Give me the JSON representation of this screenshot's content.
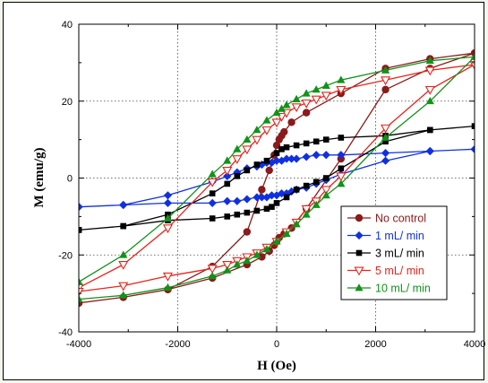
{
  "chart_data": {
    "type": "line",
    "xlabel": "H (Oe)",
    "ylabel": "M (emu/g)",
    "xlim": [
      -4000,
      4000
    ],
    "ylim": [
      -40,
      40
    ],
    "xticks": [
      -4000,
      -2000,
      0,
      2000,
      4000
    ],
    "yticks": [
      -40,
      -20,
      0,
      20,
      40
    ],
    "grid": true,
    "legend_position": "bottom-right",
    "series": [
      {
        "name": "No control",
        "color": "#8b1a1a",
        "marker": "circle",
        "x": [
          -4000,
          -3100,
          -2200,
          -1300,
          -600,
          -300,
          -150,
          -50,
          0,
          50,
          100,
          150,
          300,
          600,
          1300,
          2200,
          3100,
          4000,
          3100,
          2200,
          1300,
          600,
          300,
          150,
          50,
          0,
          -50,
          -150,
          -300,
          -600,
          -1300,
          -2200,
          -3100,
          -4000
        ],
        "y": [
          -32.5,
          -31,
          -29,
          -23,
          -14,
          -3,
          2,
          6,
          8.5,
          10,
          11,
          12,
          14.5,
          17,
          22,
          28.5,
          31,
          32.5,
          28.5,
          23,
          5,
          -8,
          -13,
          -14.5,
          -15.5,
          -16.5,
          -17.5,
          -19,
          -20.5,
          -22.5,
          -26,
          -29,
          -31,
          -32.5
        ]
      },
      {
        "name": "1 mL/ min",
        "color": "#1030e0",
        "marker": "diamond",
        "x": [
          -4000,
          -3100,
          -2200,
          -1300,
          -1000,
          -800,
          -600,
          -400,
          -300,
          -200,
          -100,
          0,
          100,
          200,
          300,
          400,
          600,
          800,
          1000,
          1300,
          2200,
          3100,
          4000,
          3100,
          2200,
          1300,
          1000,
          800,
          600,
          400,
          300,
          200,
          100,
          0,
          -100,
          -200,
          -300,
          -400,
          -600,
          -800,
          -1000,
          -1300,
          -2200,
          -3100,
          -4000
        ],
        "y": [
          -7.5,
          -7,
          -4.5,
          -1,
          0.5,
          1.5,
          2.5,
          3,
          3.5,
          4,
          4,
          4.5,
          4.5,
          5,
          5,
          5,
          5.5,
          6,
          6,
          6,
          6.5,
          7,
          7.5,
          7,
          4.5,
          1,
          -0.5,
          -1.5,
          -2.5,
          -3,
          -3.5,
          -4,
          -4,
          -4.5,
          -4.5,
          -5,
          -5,
          -5,
          -5.5,
          -6,
          -6,
          -6.5,
          -6.5,
          -7,
          -7.5
        ]
      },
      {
        "name": "3 mL/ min",
        "color": "#000000",
        "marker": "square",
        "x": [
          -4000,
          -3100,
          -2200,
          -1300,
          -1000,
          -800,
          -600,
          -400,
          -200,
          0,
          100,
          200,
          400,
          600,
          800,
          1000,
          1300,
          2200,
          3100,
          4000,
          3100,
          2200,
          1300,
          1000,
          800,
          600,
          400,
          200,
          0,
          -100,
          -200,
          -400,
          -600,
          -800,
          -1000,
          -1300,
          -2200,
          -3100,
          -4000
        ],
        "y": [
          -13.5,
          -12.5,
          -9.5,
          -4,
          -1.5,
          0.5,
          2,
          3.5,
          4.5,
          6.5,
          7.5,
          8,
          8.5,
          9,
          9.5,
          10,
          10.5,
          11,
          12.5,
          13.5,
          12.5,
          9.5,
          2.5,
          0,
          -1,
          -2,
          -3,
          -5,
          -6.5,
          -7.5,
          -8,
          -8.5,
          -9,
          -9.5,
          -10,
          -10.5,
          -11,
          -12.5,
          -13.5
        ]
      },
      {
        "name": "5 mL/ min",
        "color": "#e8231a",
        "marker": "triangle-down-open",
        "x": [
          -4000,
          -3100,
          -2200,
          -1300,
          -1000,
          -800,
          -600,
          -400,
          -200,
          0,
          100,
          200,
          400,
          600,
          800,
          1000,
          1300,
          2200,
          3100,
          4000,
          3100,
          2200,
          1300,
          1000,
          800,
          600,
          400,
          200,
          0,
          -200,
          -400,
          -600,
          -800,
          -1000,
          -1300,
          -2200,
          -3100,
          -4000
        ],
        "y": [
          -28.5,
          -22.5,
          -13,
          -1,
          2,
          5,
          7.5,
          10,
          12.5,
          14.5,
          16,
          17,
          18.5,
          19.5,
          20.5,
          21.5,
          23,
          25.5,
          28,
          29.5,
          23,
          13,
          0.5,
          -3,
          -6,
          -8,
          -11.5,
          -14,
          -16.5,
          -18,
          -19.5,
          -20.5,
          -21.5,
          -22.5,
          -23.5,
          -25.5,
          -28,
          -29.5
        ]
      },
      {
        "name": "10 mL/ min",
        "color": "#12921a",
        "marker": "triangle-up",
        "x": [
          -4000,
          -3100,
          -2200,
          -1300,
          -1000,
          -800,
          -600,
          -400,
          -200,
          0,
          100,
          200,
          400,
          600,
          800,
          1000,
          1300,
          2200,
          3100,
          4000,
          3100,
          2200,
          1300,
          1000,
          800,
          600,
          400,
          200,
          0,
          -200,
          -400,
          -600,
          -800,
          -1000,
          -1300,
          -2200,
          -3100,
          -4000
        ],
        "y": [
          -27,
          -20,
          -10.5,
          1,
          4.5,
          7.5,
          10,
          12.5,
          15,
          17,
          18,
          19,
          20.5,
          22,
          23,
          24,
          25.5,
          28,
          30.5,
          31.5,
          20,
          10.5,
          -1.5,
          -4.5,
          -7,
          -9.5,
          -12,
          -14.5,
          -16.5,
          -18.5,
          -20,
          -21.5,
          -22.5,
          -24,
          -25.5,
          -28.5,
          -30.5,
          -31.5
        ]
      }
    ]
  }
}
